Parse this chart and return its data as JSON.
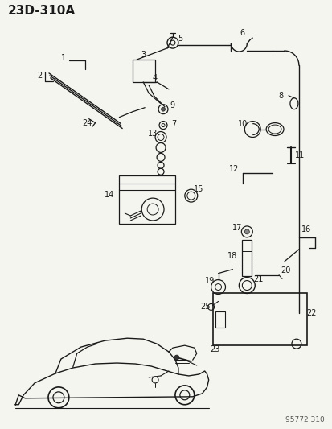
{
  "title": "23D-310A",
  "watermark": "95772 310",
  "bg_color": "#f5f5f0",
  "line_color": "#1a1a1a",
  "text_color": "#1a1a1a",
  "title_fontsize": 11,
  "label_fontsize": 7,
  "watermark_fontsize": 6.5,
  "fig_width": 4.14,
  "fig_height": 5.33,
  "dpi": 100
}
